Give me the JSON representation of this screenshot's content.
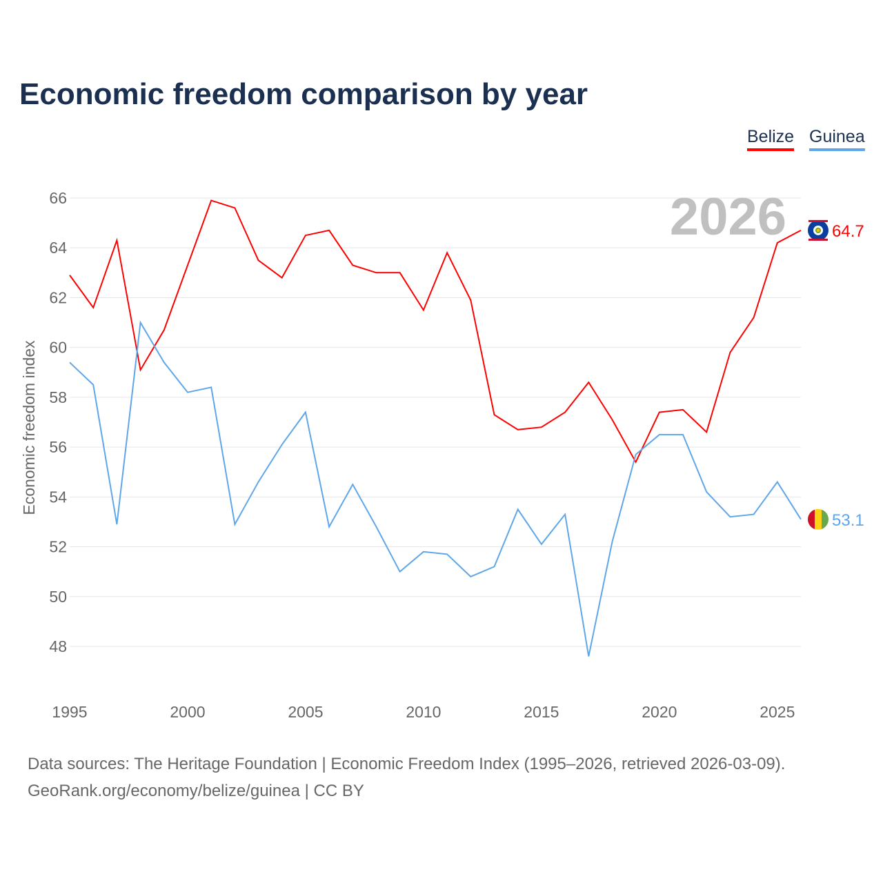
{
  "title": "Economic freedom comparison by year",
  "source_line1": "Data sources: The Heritage Foundation | Economic Freedom Index (1995–2026, retrieved 2026-03-09).",
  "source_line2": "GeoRank.org/economy/belize/guinea | CC BY",
  "chart_data": {
    "type": "line",
    "title": "Economic freedom comparison by year",
    "ylabel": "Economic freedom index",
    "xlabel": "",
    "year_watermark": "2026",
    "x": [
      1995,
      1996,
      1997,
      1998,
      1999,
      2000,
      2001,
      2002,
      2003,
      2004,
      2005,
      2006,
      2007,
      2008,
      2009,
      2010,
      2011,
      2012,
      2013,
      2014,
      2015,
      2016,
      2017,
      2018,
      2019,
      2020,
      2021,
      2022,
      2023,
      2024,
      2025,
      2026
    ],
    "xticks": [
      "1995",
      "2000",
      "2005",
      "2010",
      "2015",
      "2020",
      "2025"
    ],
    "yticks": [
      "48",
      "50",
      "52",
      "54",
      "56",
      "58",
      "60",
      "62",
      "64",
      "66"
    ],
    "xlim": [
      1995,
      2026
    ],
    "ylim": [
      46.5,
      67
    ],
    "grid": true,
    "legend_position": "top-right",
    "series": [
      {
        "name": "Belize",
        "color": "#ff0000",
        "end_label": "64.7",
        "flag": "belize-flag",
        "values": [
          62.9,
          61.6,
          64.3,
          59.1,
          60.7,
          63.3,
          65.9,
          65.6,
          63.5,
          62.8,
          64.5,
          64.7,
          63.3,
          63.0,
          63.0,
          61.5,
          63.8,
          61.9,
          57.3,
          56.7,
          56.8,
          57.4,
          58.6,
          57.1,
          55.4,
          57.4,
          57.5,
          56.6,
          59.8,
          61.2,
          64.2,
          64.7
        ]
      },
      {
        "name": "Guinea",
        "color": "#5ea6ea",
        "end_label": "53.1",
        "flag": "guinea-flag",
        "values": [
          59.4,
          58.5,
          52.9,
          61.0,
          59.4,
          58.2,
          58.4,
          52.9,
          54.6,
          56.1,
          57.4,
          52.8,
          54.5,
          52.8,
          51.0,
          51.8,
          51.7,
          50.8,
          51.2,
          53.5,
          52.1,
          53.3,
          47.6,
          52.2,
          55.7,
          56.5,
          56.5,
          54.2,
          53.2,
          53.3,
          54.6,
          53.1
        ]
      }
    ]
  }
}
